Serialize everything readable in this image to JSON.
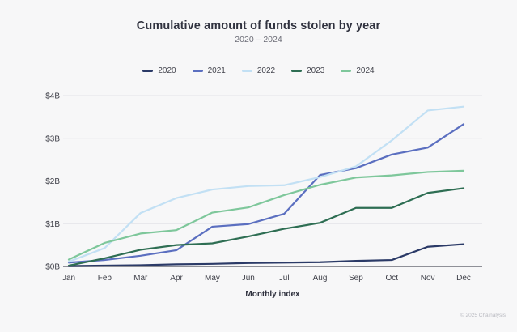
{
  "header": {
    "title": "Cumulative amount of funds stolen by year",
    "subtitle": "2020 – 2024"
  },
  "footer": {
    "xaxis_title": "Monthly index",
    "copyright": "© 2025 Chainalysis"
  },
  "colors": {
    "background": "#f7f7f8",
    "gridline": "#e3e3e7",
    "axis_line": "#8f9098",
    "title_text": "#30323f",
    "subtitle_text": "#6d6e78",
    "tick_text": "#3f4049",
    "copyright_text": "#b9bac1"
  },
  "chart_data": {
    "type": "line",
    "title": "Cumulative amount of funds stolen by year",
    "subtitle": "2020 – 2024",
    "xlabel": "Monthly index",
    "ylabel": "",
    "unit": "billions USD",
    "grid": true,
    "legend_position": "top",
    "ylim": [
      0,
      4
    ],
    "x": [
      "Jan",
      "Feb",
      "Mar",
      "Apr",
      "May",
      "Jun",
      "Jul",
      "Aug",
      "Sep",
      "Oct",
      "Nov",
      "Dec"
    ],
    "y_ticks": [
      {
        "label": "$0B",
        "value": 0
      },
      {
        "label": "$1B",
        "value": 1
      },
      {
        "label": "$2B",
        "value": 2
      },
      {
        "label": "$3B",
        "value": 3
      },
      {
        "label": "$4B",
        "value": 4
      }
    ],
    "series": [
      {
        "name": "2020",
        "color": "#2b3a67",
        "values": [
          0.01,
          0.02,
          0.03,
          0.05,
          0.06,
          0.08,
          0.09,
          0.1,
          0.13,
          0.15,
          0.46,
          0.52
        ]
      },
      {
        "name": "2021",
        "color": "#5b6fc0",
        "values": [
          0.09,
          0.15,
          0.25,
          0.38,
          0.93,
          0.99,
          1.23,
          2.14,
          2.3,
          2.62,
          2.78,
          3.33
        ]
      },
      {
        "name": "2022",
        "color": "#c2e0f4",
        "values": [
          0.11,
          0.43,
          1.25,
          1.6,
          1.8,
          1.88,
          1.9,
          2.09,
          2.34,
          2.95,
          3.65,
          3.74
        ]
      },
      {
        "name": "2023",
        "color": "#2e6e53",
        "values": [
          0.02,
          0.19,
          0.39,
          0.5,
          0.54,
          0.7,
          0.88,
          1.02,
          1.37,
          1.37,
          1.72,
          1.83
        ]
      },
      {
        "name": "2024",
        "color": "#7ec79b",
        "values": [
          0.16,
          0.55,
          0.77,
          0.85,
          1.26,
          1.38,
          1.67,
          1.91,
          2.08,
          2.13,
          2.21,
          2.24
        ]
      }
    ]
  }
}
